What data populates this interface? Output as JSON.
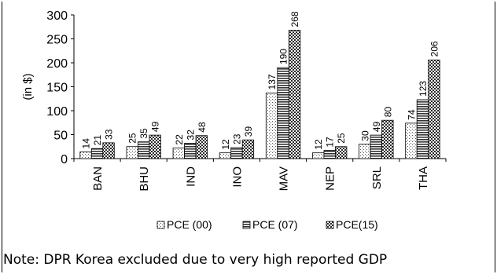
{
  "chart_data": {
    "type": "bar",
    "categories": [
      "BAN",
      "BHU",
      "IND",
      "INO",
      "MAV",
      "NEP",
      "SRL",
      "THA"
    ],
    "series": [
      {
        "name": "PCE (00)",
        "values": [
          14,
          25,
          22,
          12,
          137,
          12,
          30,
          74
        ]
      },
      {
        "name": "PCE (07)",
        "values": [
          21,
          35,
          32,
          23,
          190,
          17,
          49,
          123
        ]
      },
      {
        "name": "PCE(15)",
        "values": [
          33,
          49,
          48,
          39,
          268,
          25,
          80,
          206
        ]
      }
    ],
    "ylabel": "(in $)",
    "ylim": [
      0,
      300
    ],
    "yticks": [
      0,
      50,
      100,
      150,
      200,
      250,
      300
    ],
    "grid": false,
    "legend": "bottom",
    "data_labels": true
  },
  "note": "Note: DPR Korea excluded due to very high reported GDP"
}
